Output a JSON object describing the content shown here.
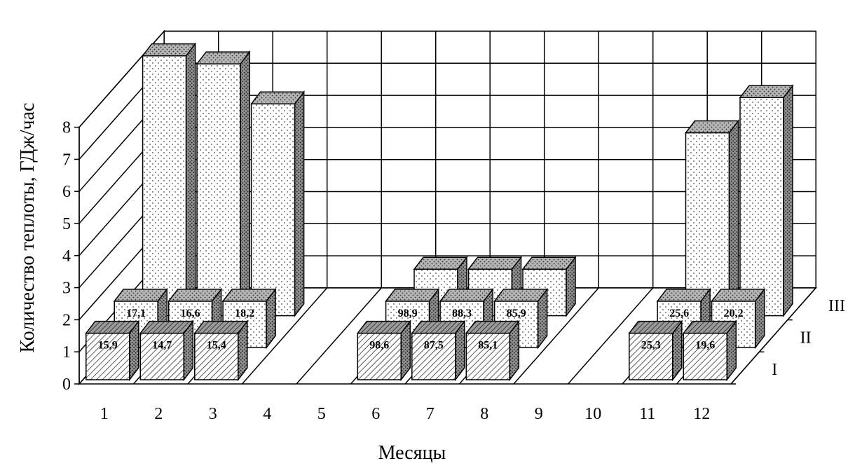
{
  "chart_data": {
    "type": "bar",
    "subtype": "3d-clustered-depth",
    "xlabel": "Месяцы",
    "ylabel": "Количество теплоты, ГДж/час",
    "ylim": [
      0,
      8
    ],
    "yticks": [
      "0",
      "1",
      "2",
      "3",
      "4",
      "5",
      "6",
      "7",
      "8"
    ],
    "categories": [
      "1",
      "2",
      "3",
      "4",
      "5",
      "6",
      "7",
      "8",
      "9",
      "10",
      "11",
      "12"
    ],
    "grid": true,
    "series": [
      {
        "name": "I",
        "values": [
          1.45,
          1.45,
          1.45,
          null,
          null,
          1.45,
          1.45,
          1.45,
          null,
          null,
          1.45,
          1.45
        ],
        "labels": [
          "15,9",
          "14,7",
          "15,4",
          null,
          null,
          "98,6",
          "87,5",
          "85,1",
          null,
          null,
          "25,3",
          "19,6"
        ],
        "pattern": "hatch"
      },
      {
        "name": "II",
        "values": [
          1.45,
          1.45,
          1.45,
          null,
          null,
          1.45,
          1.45,
          1.45,
          null,
          null,
          1.45,
          1.45
        ],
        "labels": [
          "17,1",
          "16,6",
          "18,2",
          null,
          null,
          "98,9",
          "88,3",
          "85,9",
          null,
          null,
          "25,6",
          "20,2"
        ],
        "pattern": "dots"
      },
      {
        "name": "III",
        "values": [
          8.1,
          7.85,
          6.6,
          null,
          null,
          1.45,
          1.45,
          1.45,
          null,
          null,
          5.7,
          6.8
        ],
        "labels": [
          null,
          null,
          null,
          null,
          null,
          null,
          null,
          null,
          null,
          null,
          null,
          null
        ],
        "pattern": "dots"
      }
    ]
  }
}
